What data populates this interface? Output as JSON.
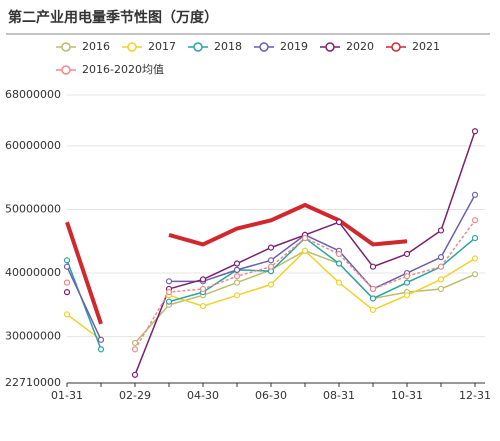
{
  "chart_data": {
    "type": "line",
    "title": "第二产业用电量季节性图（万度）",
    "categories": [
      "01-31",
      null,
      "02-29",
      null,
      "04-30",
      null,
      "06-30",
      null,
      "08-31",
      null,
      "10-31",
      null,
      "12-31"
    ],
    "ylim": [
      22710000,
      68000000
    ],
    "yticks": [
      22710000,
      30000000,
      40000000,
      50000000,
      60000000,
      68000000
    ],
    "grid": true,
    "legend": "top",
    "series": [
      {
        "name": "2016",
        "color": "#b9bd6e",
        "line_style": "solid",
        "values": [
          38500000,
          null,
          29000000,
          35000000,
          36500000,
          38500000,
          40500000,
          43500000,
          41500000,
          36000000,
          37000000,
          37500000,
          39800000
        ]
      },
      {
        "name": "2017",
        "color": "#f2d12b",
        "line_style": "solid",
        "values": [
          33500000,
          29500000,
          null,
          36500000,
          34800000,
          36500000,
          38200000,
          43500000,
          38500000,
          34200000,
          36500000,
          39000000,
          42300000
        ]
      },
      {
        "name": "2018",
        "color": "#2aa3a1",
        "line_style": "solid",
        "values": [
          42000000,
          28000000,
          null,
          35500000,
          37000000,
          40500000,
          40300000,
          45500000,
          41500000,
          36000000,
          38500000,
          41000000,
          45500000
        ]
      },
      {
        "name": "2019",
        "color": "#6c5fae",
        "line_style": "solid",
        "values": [
          41000000,
          29500000,
          null,
          38700000,
          38700000,
          40500000,
          42000000,
          46000000,
          43500000,
          37500000,
          40000000,
          42500000,
          52300000
        ]
      },
      {
        "name": "2020",
        "color": "#7d1f6f",
        "line_style": "solid",
        "values": [
          37000000,
          null,
          24000000,
          37500000,
          39000000,
          41500000,
          44000000,
          46000000,
          48000000,
          41000000,
          43000000,
          46700000,
          62300000
        ]
      },
      {
        "name": "2021",
        "color": "#d1282e",
        "line_style": "bold",
        "values": [
          48000000,
          32000000,
          null,
          46000000,
          44500000,
          47000000,
          48300000,
          50700000,
          48300000,
          44500000,
          45000000,
          null,
          null
        ]
      },
      {
        "name": "2016-2020均值",
        "color": "#f08a8a",
        "line_style": "dashed",
        "values": [
          38500000,
          null,
          28000000,
          37000000,
          37500000,
          39500000,
          41000000,
          45500000,
          43000000,
          37500000,
          39500000,
          41000000,
          48300000
        ]
      }
    ]
  }
}
